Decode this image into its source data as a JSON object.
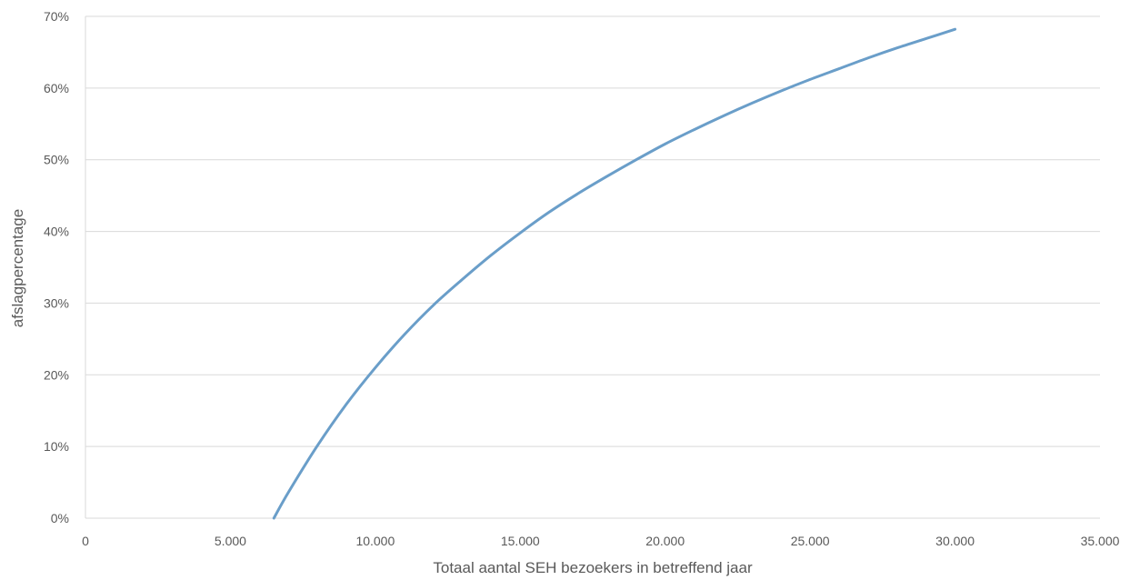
{
  "chart_data": {
    "type": "line",
    "xlabel": "Totaal aantal SEH bezoekers in betreffend jaar",
    "ylabel": "afslagpercentage",
    "xlim": [
      0,
      35000
    ],
    "ylim": [
      0,
      0.7
    ],
    "x_ticks": [
      0,
      5000,
      10000,
      15000,
      20000,
      25000,
      30000,
      35000
    ],
    "x_tick_labels": [
      "0",
      "5.000",
      "10.000",
      "15.000",
      "20.000",
      "25.000",
      "30.000",
      "35.000"
    ],
    "y_ticks": [
      0,
      0.1,
      0.2,
      0.3,
      0.4,
      0.5,
      0.6,
      0.7
    ],
    "y_tick_labels": [
      "0%",
      "10%",
      "20%",
      "30%",
      "40%",
      "50%",
      "60%",
      "70%"
    ],
    "grid": "horizontal",
    "legend": "none",
    "series": [
      {
        "color": "#6a9ec9",
        "x": [
          6500,
          7000,
          8000,
          9000,
          10000,
          11000,
          12000,
          13000,
          14000,
          15000,
          16000,
          17000,
          18000,
          19000,
          20000,
          21000,
          22000,
          23000,
          24000,
          25000,
          26000,
          27000,
          28000,
          29000,
          30000
        ],
        "y": [
          0.0,
          0.036,
          0.101,
          0.159,
          0.21,
          0.256,
          0.297,
          0.333,
          0.367,
          0.398,
          0.427,
          0.453,
          0.477,
          0.5,
          0.522,
          0.542,
          0.561,
          0.579,
          0.596,
          0.612,
          0.627,
          0.642,
          0.656,
          0.669,
          0.682
        ]
      }
    ]
  }
}
